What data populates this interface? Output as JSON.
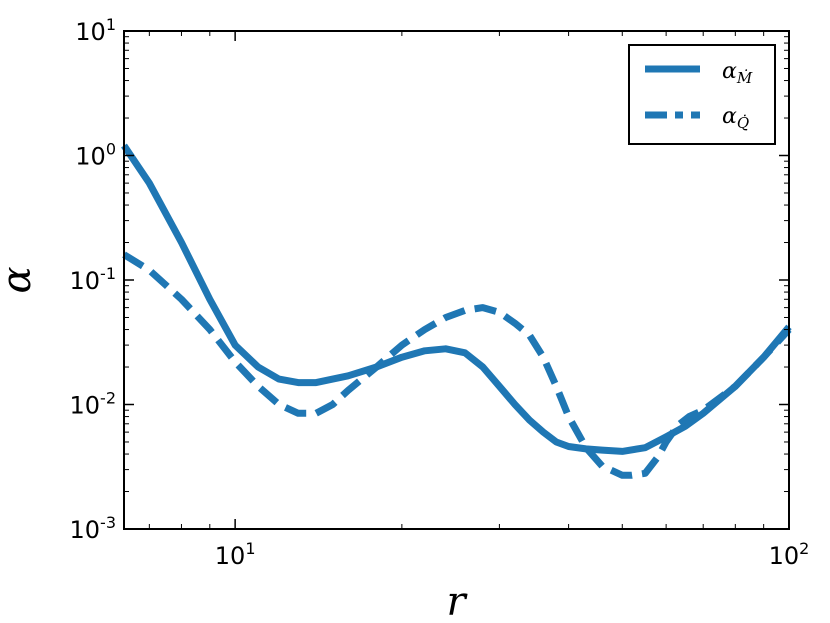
{
  "chart_data": {
    "type": "line",
    "title": "",
    "xlabel": "r",
    "ylabel": "α",
    "xscale": "log",
    "yscale": "log",
    "xlim": [
      6.3,
      100
    ],
    "ylim": [
      0.001,
      10
    ],
    "grid": false,
    "legend_position": "top-right",
    "color": "#1f77b4",
    "x_ticks": [
      {
        "value": 10,
        "base": "10",
        "exp": "1"
      },
      {
        "value": 100,
        "base": "10",
        "exp": "2"
      }
    ],
    "y_ticks": [
      {
        "value": 0.001,
        "base": "10",
        "exp": "-3"
      },
      {
        "value": 0.01,
        "base": "10",
        "exp": "-2"
      },
      {
        "value": 0.1,
        "base": "10",
        "exp": "-1"
      },
      {
        "value": 1,
        "base": "10",
        "exp": "0"
      },
      {
        "value": 10,
        "base": "10",
        "exp": "1"
      }
    ],
    "series": [
      {
        "name": "α_Ṁ",
        "label_main": "α",
        "label_sub": "Ṁ",
        "style": "solid",
        "x": [
          6.3,
          7,
          8,
          9,
          10,
          11,
          12,
          13,
          14,
          15,
          16,
          18,
          20,
          22,
          24,
          26,
          28,
          30,
          32,
          34,
          36,
          38,
          40,
          43,
          46,
          50,
          55,
          60,
          65,
          70,
          80,
          90,
          100
        ],
        "y": [
          1.2,
          0.6,
          0.2,
          0.07,
          0.03,
          0.02,
          0.016,
          0.015,
          0.015,
          0.016,
          0.017,
          0.02,
          0.024,
          0.027,
          0.028,
          0.026,
          0.02,
          0.014,
          0.01,
          0.0075,
          0.006,
          0.005,
          0.0046,
          0.0044,
          0.0043,
          0.0042,
          0.0045,
          0.0055,
          0.0067,
          0.0085,
          0.014,
          0.024,
          0.042
        ]
      },
      {
        "name": "α_Q̇",
        "label_main": "α",
        "label_sub": "Q̇",
        "style": "dashed",
        "x": [
          6.3,
          7,
          8,
          9,
          10,
          11,
          12,
          13,
          14,
          15,
          16,
          18,
          20,
          22,
          24,
          26,
          28,
          30,
          32,
          34,
          36,
          38,
          40,
          43,
          46,
          50,
          52,
          55,
          58,
          60,
          63,
          66,
          70,
          80,
          90,
          100
        ],
        "y": [
          0.16,
          0.12,
          0.07,
          0.04,
          0.022,
          0.014,
          0.01,
          0.0085,
          0.0085,
          0.01,
          0.013,
          0.02,
          0.03,
          0.04,
          0.05,
          0.057,
          0.06,
          0.055,
          0.045,
          0.036,
          0.024,
          0.014,
          0.008,
          0.0045,
          0.0032,
          0.0027,
          0.0027,
          0.0028,
          0.0038,
          0.005,
          0.0068,
          0.008,
          0.009,
          0.014,
          0.024,
          0.04
        ]
      }
    ]
  }
}
